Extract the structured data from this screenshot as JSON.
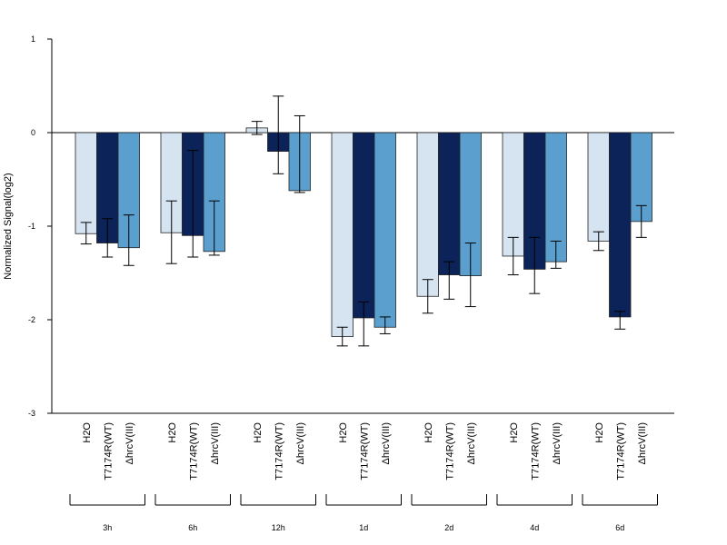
{
  "chart_data": {
    "type": "bar",
    "title": "",
    "xlabel": "",
    "ylabel": "Normalized Signal(log2)",
    "ylim": [
      -3,
      1
    ],
    "yticks": [
      "1",
      "0",
      "-1",
      "-2",
      "-3"
    ],
    "groups": [
      "3h",
      "6h",
      "12h",
      "1d",
      "2d",
      "4d",
      "6d"
    ],
    "series": [
      {
        "name": "H2O",
        "color": "#d6e4f2",
        "values": [
          -1.08,
          -1.07,
          0.05,
          -2.18,
          -1.75,
          -1.32,
          -1.16
        ],
        "error_low": [
          -1.19,
          -1.4,
          -0.02,
          -2.28,
          -1.93,
          -1.52,
          -1.26
        ],
        "error_high": [
          -0.96,
          -0.73,
          0.12,
          -2.08,
          -1.57,
          -1.12,
          -1.06
        ]
      },
      {
        "name": "T7174R(WT)",
        "color": "#0b2358",
        "values": [
          -1.18,
          -1.1,
          -0.2,
          -1.98,
          -1.52,
          -1.46,
          -1.97
        ],
        "error_low": [
          -1.33,
          -1.33,
          -0.44,
          -2.28,
          -1.78,
          -1.72,
          -2.1
        ],
        "error_high": [
          -0.92,
          -0.19,
          0.39,
          -1.81,
          -1.38,
          -1.12,
          -1.91
        ]
      },
      {
        "name": "ΔhrcV(III)",
        "color": "#5b9fcf",
        "values": [
          -1.23,
          -1.27,
          -0.62,
          -2.08,
          -1.53,
          -1.38,
          -0.95
        ],
        "error_low": [
          -1.42,
          -1.31,
          -0.64,
          -2.15,
          -1.86,
          -1.45,
          -1.12
        ],
        "error_high": [
          -0.88,
          -0.73,
          0.18,
          -1.97,
          -1.18,
          -1.16,
          -0.78
        ]
      }
    ],
    "bar_labels": [
      "H2O",
      "T7174R(WT)",
      "ΔhrcV(III)"
    ],
    "grid": false,
    "legend": "none"
  }
}
